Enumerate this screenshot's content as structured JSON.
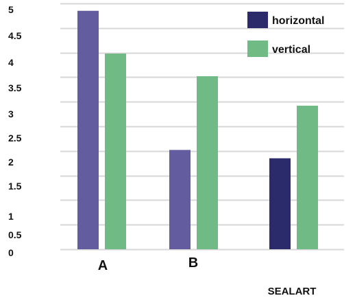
{
  "chart_data": {
    "type": "bar",
    "categories": [
      "A",
      "B",
      "SEALART"
    ],
    "series": [
      {
        "name": "horizontal",
        "values": [
          4.85,
          2.02,
          1.85
        ],
        "colors": [
          "#635c9e",
          "#635c9e",
          "#2b2a6b"
        ]
      },
      {
        "name": "vertical",
        "values": [
          3.98,
          3.52,
          2.92
        ],
        "color": "#6fba85"
      }
    ],
    "y_ticks": [
      "0",
      "0.5",
      "1",
      "1.5",
      "2",
      "2.5",
      "3",
      "3.5",
      "4",
      "4.5",
      "5"
    ],
    "ylim": [
      0,
      5
    ],
    "grid": true,
    "legend": {
      "placement": "top-right",
      "entries": [
        {
          "label": "horizontal",
          "color": "#2b2a6b"
        },
        {
          "label": "vertical",
          "color": "#6fba85"
        }
      ]
    },
    "colors": {
      "grid": "#d7d7d7",
      "text": "#111111"
    }
  }
}
